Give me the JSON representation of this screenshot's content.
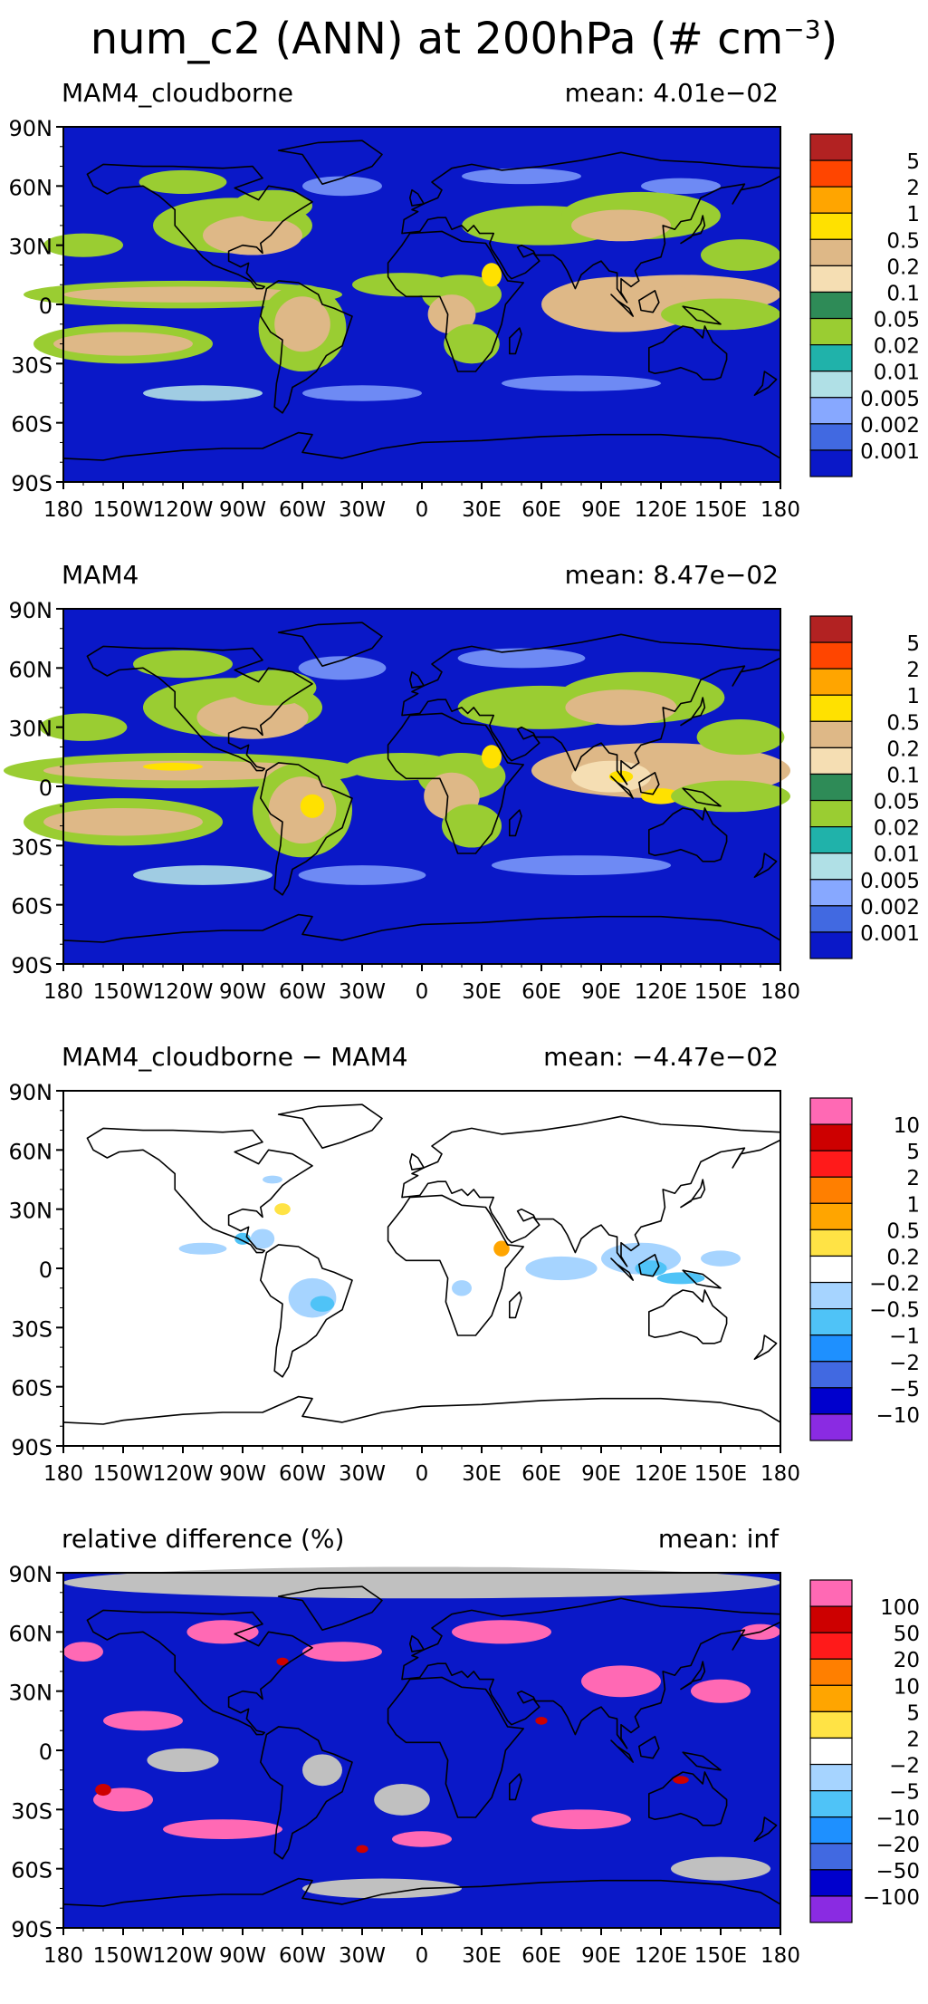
{
  "title": "num_c2 (ANN) at 200hPa (# cm",
  "title_exp": "−3",
  "title_close": ")",
  "lat_ticks": [
    "90N",
    "60N",
    "30N",
    "0",
    "30S",
    "60S",
    "90S"
  ],
  "lon_ticks": [
    "180",
    "150W",
    "120W",
    "90W",
    "60W",
    "30W",
    "0",
    "30E",
    "60E",
    "90E",
    "120E",
    "150E",
    "180"
  ],
  "panels": [
    {
      "name": "MAM4_cloudborne",
      "mean": "mean:  4.01e−02",
      "background": "#0a18c8",
      "colorbar": {
        "colors": [
          "#b22222",
          "#ff4500",
          "#ffa500",
          "#ffe100",
          "#deb887",
          "#f5deb3",
          "#2e8b57",
          "#9acd32",
          "#20b2aa",
          "#b0e0e6",
          "#87a8ff",
          "#4169e1",
          "#0a18c8"
        ],
        "labels": [
          "5",
          "2",
          "1",
          "0.5",
          "0.2",
          "0.1",
          "0.05",
          "0.02",
          "0.01",
          "0.005",
          "0.002",
          "0.001"
        ]
      }
    },
    {
      "name": "MAM4",
      "mean": "mean:  8.47e−02",
      "background": "#0a18c8",
      "colorbar": {
        "colors": [
          "#b22222",
          "#ff4500",
          "#ffa500",
          "#ffe100",
          "#deb887",
          "#f5deb3",
          "#2e8b57",
          "#9acd32",
          "#20b2aa",
          "#b0e0e6",
          "#87a8ff",
          "#4169e1",
          "#0a18c8"
        ],
        "labels": [
          "5",
          "2",
          "1",
          "0.5",
          "0.2",
          "0.1",
          "0.05",
          "0.02",
          "0.01",
          "0.005",
          "0.002",
          "0.001"
        ]
      }
    },
    {
      "name": "MAM4_cloudborne − MAM4",
      "mean": "mean:  −4.47e−02",
      "background": "#ffffff",
      "colorbar": {
        "colors": [
          "#ff69b4",
          "#cd0000",
          "#ff1a1a",
          "#ff7f00",
          "#ffa500",
          "#ffe345",
          "#ffffff",
          "#a6d4ff",
          "#4fc3f7",
          "#1e90ff",
          "#4169e1",
          "#0000cd",
          "#8a2be2"
        ],
        "labels": [
          "10",
          "5",
          "2",
          "1",
          "0.5",
          "0.2",
          "−0.2",
          "−0.5",
          "−1",
          "−2",
          "−5",
          "−10"
        ]
      }
    },
    {
      "name": "relative difference (%)",
      "mean": "mean:     inf",
      "background": "#0a18c8",
      "colorbar": {
        "colors": [
          "#ff69b4",
          "#cd0000",
          "#ff1a1a",
          "#ff7f00",
          "#ffa500",
          "#ffe345",
          "#ffffff",
          "#a6d4ff",
          "#4fc3f7",
          "#1e90ff",
          "#4169e1",
          "#0000cd",
          "#8a2be2"
        ],
        "labels": [
          "100",
          "50",
          "20",
          "10",
          "5",
          "2",
          "−2",
          "−5",
          "−10",
          "−20",
          "−50",
          "−100"
        ]
      }
    }
  ]
}
